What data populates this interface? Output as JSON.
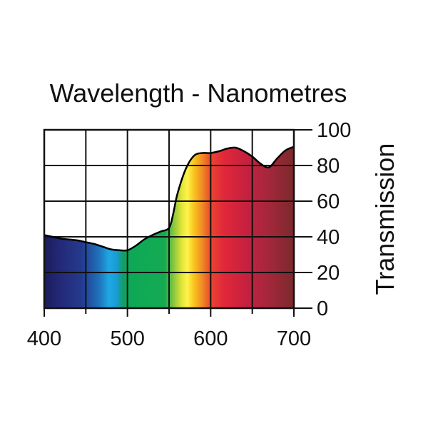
{
  "chart_data": {
    "type": "area",
    "title": "Wavelength - Nanometres",
    "xlabel": "Wavelength - Nanometres",
    "ylabel": "Transmission",
    "xlim": [
      400,
      700
    ],
    "ylim": [
      0,
      100
    ],
    "xticks": [
      400,
      500,
      600,
      700
    ],
    "yticks": [
      0,
      20,
      40,
      60,
      80,
      100
    ],
    "grid": true,
    "fill": "visible spectrum gradient under curve",
    "series": [
      {
        "name": "Transmission",
        "x": [
          400,
          410,
          420,
          430,
          440,
          450,
          460,
          470,
          480,
          490,
          500,
          510,
          520,
          530,
          540,
          550,
          555,
          560,
          570,
          580,
          590,
          600,
          610,
          620,
          630,
          640,
          650,
          660,
          670,
          680,
          690,
          700
        ],
        "y": [
          41,
          40,
          39,
          38.5,
          38,
          37,
          36,
          34.5,
          33,
          32.5,
          32.5,
          35,
          38.5,
          41,
          43,
          45,
          53,
          64,
          78,
          85.5,
          87,
          87,
          88,
          89.5,
          90,
          88,
          85,
          81,
          79,
          84,
          88.5,
          90.5
        ]
      }
    ],
    "spectrum_stops": [
      {
        "nm": 400,
        "color": "#1c1c5c"
      },
      {
        "nm": 420,
        "color": "#232a78"
      },
      {
        "nm": 445,
        "color": "#253a8e"
      },
      {
        "nm": 465,
        "color": "#1f6fb8"
      },
      {
        "nm": 478,
        "color": "#1ea8e4"
      },
      {
        "nm": 487,
        "color": "#1a9bd4"
      },
      {
        "nm": 495,
        "color": "#129e63"
      },
      {
        "nm": 505,
        "color": "#0ea956"
      },
      {
        "nm": 545,
        "color": "#14aa52"
      },
      {
        "nm": 555,
        "color": "#84c53e"
      },
      {
        "nm": 565,
        "color": "#e0e437"
      },
      {
        "nm": 572,
        "color": "#fff34a"
      },
      {
        "nm": 580,
        "color": "#f9c41e"
      },
      {
        "nm": 590,
        "color": "#f08a24"
      },
      {
        "nm": 600,
        "color": "#e8472f"
      },
      {
        "nm": 615,
        "color": "#e2283a"
      },
      {
        "nm": 640,
        "color": "#c8213f"
      },
      {
        "nm": 670,
        "color": "#a3273b"
      },
      {
        "nm": 700,
        "color": "#7a2a2c"
      }
    ]
  }
}
